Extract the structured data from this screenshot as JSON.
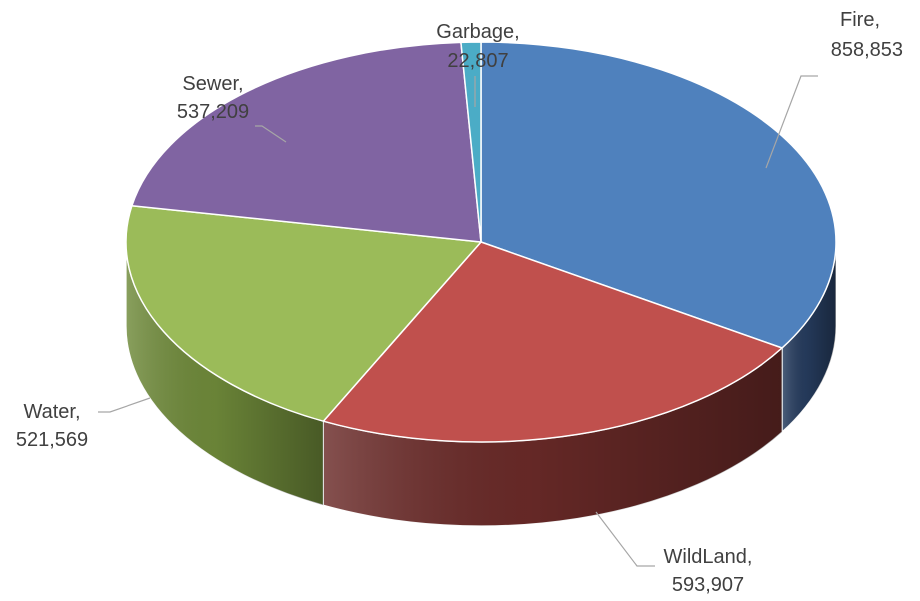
{
  "chart_data": {
    "type": "pie",
    "style": "3d",
    "categories": [
      "Fire",
      "WildLand",
      "Water",
      "Sewer",
      "Garbage"
    ],
    "values": [
      858853,
      593907,
      521569,
      537209,
      22807
    ],
    "labels": [
      {
        "name": "Fire,",
        "value": "858,853"
      },
      {
        "name": "WildLand,",
        "value": "593,907"
      },
      {
        "name": "Water,",
        "value": "521,569"
      },
      {
        "name": "Sewer,",
        "value": "537,209"
      },
      {
        "name": "Garbage,",
        "value": "22,807"
      }
    ],
    "colors": {
      "Fire": "#4F81BD",
      "WildLand": "#C0504D",
      "Water": "#9BBB59",
      "Sewer": "#8064A2",
      "Garbage": "#4BACC6"
    },
    "side_colors": {
      "Fire": "#263C5E",
      "WildLand": "#6A2A28",
      "Water": "#6F8A3A",
      "Sewer": "#4E3D66",
      "Garbage": "#2E6E80"
    },
    "legend": "none",
    "data_labels": "outside with leader lines"
  }
}
